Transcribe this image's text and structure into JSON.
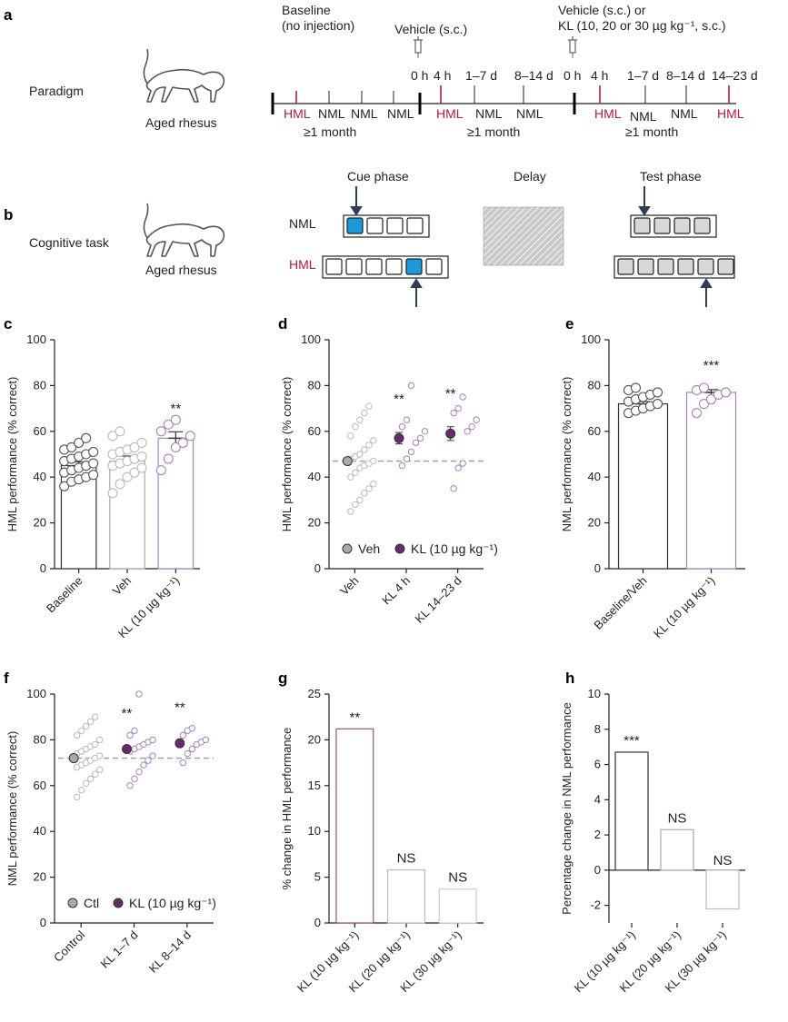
{
  "panels": {
    "a": "a",
    "b": "b",
    "c": "c",
    "d": "d",
    "e": "e",
    "f": "f",
    "g": "g",
    "h": "h"
  },
  "paradigm": {
    "row_label": "Paradigm",
    "animal_label": "Aged rhesus",
    "baseline_title_1": "Baseline",
    "baseline_title_2": "(no injection)",
    "vehicle_title": "Vehicle (s.c.)",
    "kl_title_1": "Vehicle (s.c.) or",
    "kl_title_2": "KL (10, 20 or 30 µg kg⁻¹, s.c.)",
    "block1": {
      "labels": [
        "HML",
        "NML",
        "NML",
        "NML"
      ],
      "duration": "≥1 month"
    },
    "block2": {
      "times": [
        "0 h",
        "4 h",
        "1–7 d",
        "8–14 d"
      ],
      "labels": [
        "HML",
        "NML",
        "NML"
      ],
      "duration": "≥1 month"
    },
    "block3": {
      "times": [
        "0 h",
        "4 h",
        "1–7 d",
        "8–14 d",
        "14–23 d"
      ],
      "labels": [
        "HML",
        "NML",
        "NML",
        "HML"
      ],
      "duration": "≥1 month"
    }
  },
  "task": {
    "row_label": "Cognitive task",
    "animal_label": "Aged rhesus",
    "cue_phase": "Cue phase",
    "delay": "Delay",
    "test_phase": "Test phase",
    "nml": "NML",
    "hml": "HML"
  },
  "colors": {
    "purple": "#6a2a6e",
    "light_purple": "#a584b8",
    "gray": "#aaaaaa",
    "red": "#b5193c",
    "blue": "#1a9bd7"
  },
  "chart_data": [
    {
      "id": "c",
      "type": "bar",
      "ylabel": "HML performance (% correct)",
      "ylim": [
        0,
        100
      ],
      "yticks": [
        0,
        20,
        40,
        60,
        80,
        100
      ],
      "categories": [
        "Baseline",
        "Veh",
        "KL (10 µg kg⁻¹)"
      ],
      "values": [
        45,
        47,
        57
      ],
      "sem": [
        1.6,
        2.2,
        2.8
      ],
      "points": [
        [
          36,
          38,
          39,
          40,
          41,
          42,
          43,
          44,
          45,
          46,
          47,
          48,
          49,
          50,
          51,
          52,
          53,
          55,
          57
        ],
        [
          33,
          37,
          40,
          42,
          44,
          45,
          46,
          47,
          48,
          49,
          50,
          51,
          52,
          53,
          55,
          58,
          60
        ],
        [
          43,
          48,
          53,
          55,
          58,
          60,
          63,
          65
        ]
      ],
      "annotations": [
        "",
        "",
        "**"
      ]
    },
    {
      "id": "d",
      "type": "scatter",
      "ylabel": "HML performance (% correct)",
      "ylim": [
        0,
        100
      ],
      "yticks": [
        0,
        20,
        40,
        60,
        80,
        100
      ],
      "categories": [
        "Veh",
        "KL 4 h",
        "KL 14–23 d"
      ],
      "means": [
        47,
        57,
        59
      ],
      "sem": [
        1.5,
        2.5,
        3
      ],
      "points": [
        [
          25,
          28,
          30,
          33,
          35,
          37,
          40,
          42,
          44,
          45,
          46,
          47,
          48,
          49,
          50,
          52,
          54,
          56,
          58,
          62,
          65,
          68,
          71
        ],
        [
          45,
          48,
          51,
          55,
          57,
          60,
          62,
          65,
          80
        ],
        [
          35,
          44,
          46,
          60,
          62,
          65,
          68,
          70,
          75
        ]
      ],
      "baseline": 47,
      "annotations": [
        "",
        "**",
        "**"
      ],
      "legend": [
        "Veh",
        "KL (10 µg kg⁻¹)"
      ]
    },
    {
      "id": "e",
      "type": "bar",
      "ylabel": "NML performance (% correct)",
      "ylim": [
        0,
        100
      ],
      "yticks": [
        0,
        20,
        40,
        60,
        80,
        100
      ],
      "categories": [
        "Baseline/Veh",
        "KL (10 µg kg⁻¹)"
      ],
      "values": [
        72,
        77
      ],
      "sem": [
        1.0,
        1.2
      ],
      "points": [
        [
          68,
          69,
          70,
          71,
          72,
          73,
          74,
          75,
          76,
          77,
          78,
          79
        ],
        [
          68,
          72,
          74,
          76,
          77,
          78,
          79
        ]
      ],
      "annotations": [
        "",
        "***"
      ]
    },
    {
      "id": "f",
      "type": "scatter",
      "ylabel": "NML performance (% correct)",
      "ylim": [
        0,
        100
      ],
      "yticks": [
        0,
        20,
        40,
        60,
        80,
        100
      ],
      "categories": [
        "Control",
        "KL 1–7 d",
        "KL 8–14 d"
      ],
      "means": [
        72,
        76,
        78.5
      ],
      "sem": [
        0.8,
        1.0,
        1.0
      ],
      "points": [
        [
          55,
          58,
          61,
          63,
          65,
          67,
          68,
          69,
          70,
          71,
          72,
          73,
          74,
          75,
          76,
          77,
          78,
          80,
          82,
          84,
          86,
          88,
          90
        ],
        [
          60,
          63,
          66,
          69,
          71,
          73,
          75,
          76,
          77,
          78,
          79,
          80,
          82,
          84,
          100
        ],
        [
          70,
          74,
          76,
          78,
          79,
          80,
          82,
          84,
          85
        ]
      ],
      "baseline": 72,
      "annotations": [
        "",
        "**",
        "**"
      ],
      "legend": [
        "Ctl",
        "KL (10 µg kg⁻¹)"
      ]
    },
    {
      "id": "g",
      "type": "bar",
      "ylabel": "% change in HML performance",
      "ylim": [
        0,
        25
      ],
      "yticks": [
        0,
        5,
        10,
        15,
        20,
        25
      ],
      "categories": [
        "KL (10 µg kg⁻¹)",
        "KL (20 µg kg⁻¹)",
        "KL (30 µg kg⁻¹)"
      ],
      "values": [
        21.2,
        5.8,
        3.7
      ],
      "annotations": [
        "**",
        "NS",
        "NS"
      ]
    },
    {
      "id": "h",
      "type": "bar",
      "ylabel": "Percentage change in NML performance",
      "ylim": [
        -3,
        10
      ],
      "yticks": [
        -2,
        0,
        2,
        4,
        6,
        8,
        10
      ],
      "categories": [
        "KL (10 µg kg⁻¹)",
        "KL (20 µg kg⁻¹)",
        "KL (30 µg kg⁻¹)"
      ],
      "values": [
        6.7,
        2.3,
        -2.2
      ],
      "annotations": [
        "***",
        "NS",
        "NS"
      ]
    }
  ]
}
